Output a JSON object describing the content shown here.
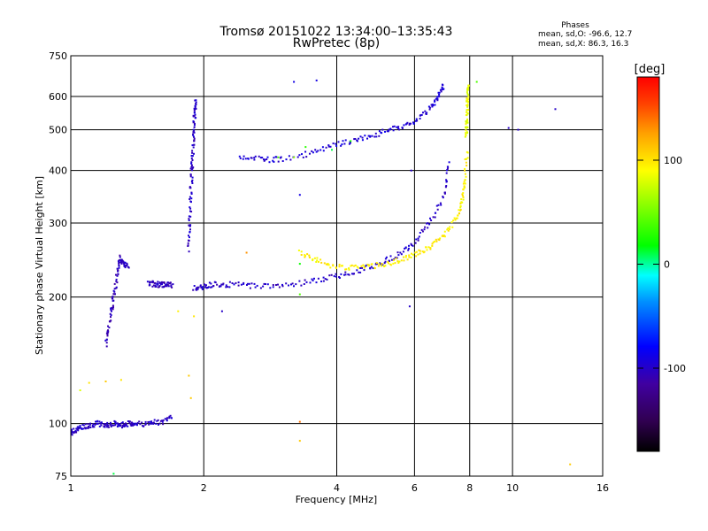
{
  "chart_data": {
    "type": "scatter",
    "title": "Tromsø 20151022 13:34:00–13:35:43",
    "subtitle": "RwPretec (8p)",
    "xlabel": "Frequency [MHz]",
    "ylabel": "Stationary phase Virtual Height [km]",
    "x_scale": "log",
    "y_scale": "log",
    "xlim": [
      1,
      16
    ],
    "ylim": [
      75,
      750
    ],
    "x_ticks": [
      1,
      2,
      4,
      6,
      8,
      10,
      16
    ],
    "x_tick_labels": [
      "1",
      "2",
      "4",
      "6",
      "8",
      "10",
      "16"
    ],
    "y_ticks": [
      75,
      100,
      200,
      300,
      400,
      500,
      600,
      750
    ],
    "y_tick_labels": [
      "75",
      "100",
      "200",
      "300",
      "400",
      "500",
      "600",
      "750"
    ],
    "grid": true,
    "phase_info": {
      "title": "Phases",
      "line_o": "mean, sd,O: -96.6, 12.7",
      "line_x": "mean, sd,X: 86.3, 16.3"
    },
    "colorbar": {
      "label": "[deg]",
      "range": [
        -180,
        180
      ],
      "tick_values": [
        100,
        0,
        -100
      ],
      "tick_labels": [
        "100",
        "0",
        "-100"
      ]
    },
    "traces": [
      {
        "id": "low-E-layer",
        "f": [
          1.0,
          1.02,
          1.05,
          1.1,
          1.15,
          1.2,
          1.25,
          1.3,
          1.35,
          1.4,
          1.5,
          1.6,
          1.7
        ],
        "h": [
          95,
          96,
          98,
          99,
          100,
          99,
          100,
          99,
          100,
          100,
          100,
          101,
          104
        ],
        "phase": -100
      },
      {
        "id": "low-ramp",
        "f": [
          1.2,
          1.22,
          1.24,
          1.26,
          1.28,
          1.3
        ],
        "h": [
          155,
          170,
          190,
          210,
          235,
          250
        ],
        "phase": -105
      },
      {
        "id": "low-cluster",
        "f": [
          1.3,
          1.32,
          1.35
        ],
        "h": [
          245,
          240,
          235
        ],
        "phase": -100
      },
      {
        "id": "f1-trace",
        "f": [
          1.5,
          1.55,
          1.6,
          1.65,
          1.7
        ],
        "h": [
          215,
          215,
          214,
          214,
          214
        ],
        "phase": -105
      },
      {
        "id": "spread-cusp",
        "f": [
          1.85,
          1.86,
          1.87,
          1.88,
          1.89,
          1.9,
          1.91,
          1.92
        ],
        "h": [
          260,
          300,
          350,
          400,
          450,
          500,
          550,
          590
        ],
        "phase": -100
      },
      {
        "id": "o-trace-lower",
        "f": [
          1.9,
          2.0,
          2.1,
          2.3,
          2.6,
          3.0,
          3.5,
          4.0,
          4.5,
          5.0,
          5.5,
          6.0,
          6.5,
          7.0,
          7.2
        ],
        "h": [
          210,
          211,
          215,
          214,
          213,
          213,
          218,
          224,
          232,
          240,
          252,
          270,
          300,
          350,
          420
        ],
        "phase": -100
      },
      {
        "id": "o-trace-upper",
        "f": [
          2.4,
          2.7,
          3.0,
          3.5,
          4.0,
          4.5,
          5.0,
          5.5,
          6.0,
          6.5,
          6.8,
          7.0
        ],
        "h": [
          430,
          425,
          425,
          440,
          460,
          475,
          490,
          505,
          520,
          560,
          600,
          640
        ],
        "phase": -95
      },
      {
        "id": "x-trace",
        "f": [
          3.3,
          3.6,
          4.0,
          4.5,
          5.0,
          5.5,
          6.0,
          6.5,
          7.0,
          7.5,
          7.7,
          7.8,
          7.9
        ],
        "h": [
          255,
          245,
          236,
          235,
          238,
          244,
          252,
          262,
          280,
          310,
          340,
          380,
          450
        ],
        "phase": 95
      },
      {
        "id": "x-cusp",
        "f": [
          7.85,
          7.88,
          7.9,
          7.92,
          7.95
        ],
        "h": [
          480,
          520,
          560,
          600,
          640
        ],
        "phase": 85
      }
    ],
    "scattered_points": [
      {
        "f": 1.1,
        "h": 125,
        "phase": 100
      },
      {
        "f": 1.2,
        "h": 126,
        "phase": 110
      },
      {
        "f": 1.3,
        "h": 127,
        "phase": 100
      },
      {
        "f": 1.05,
        "h": 120,
        "phase": 80
      },
      {
        "f": 1.75,
        "h": 185,
        "phase": 95
      },
      {
        "f": 1.9,
        "h": 180,
        "phase": 100
      },
      {
        "f": 1.85,
        "h": 130,
        "phase": 110
      },
      {
        "f": 1.87,
        "h": 115,
        "phase": 110
      },
      {
        "f": 2.5,
        "h": 255,
        "phase": 130
      },
      {
        "f": 3.3,
        "h": 101,
        "phase": 140
      },
      {
        "f": 3.3,
        "h": 91,
        "phase": 110
      },
      {
        "f": 3.3,
        "h": 350,
        "phase": -90
      },
      {
        "f": 3.2,
        "h": 650,
        "phase": -90
      },
      {
        "f": 3.6,
        "h": 655,
        "phase": -90
      },
      {
        "f": 5.9,
        "h": 400,
        "phase": -100
      },
      {
        "f": 5.85,
        "h": 190,
        "phase": -100
      },
      {
        "f": 10.3,
        "h": 500,
        "phase": -100
      },
      {
        "f": 9.8,
        "h": 505,
        "phase": -100
      },
      {
        "f": 12.5,
        "h": 560,
        "phase": -100
      },
      {
        "f": 13.5,
        "h": 80,
        "phase": 110
      },
      {
        "f": 1.25,
        "h": 76,
        "phase": 10
      },
      {
        "f": 8.3,
        "h": 650,
        "phase": 40
      },
      {
        "f": 3.3,
        "h": 203,
        "phase": 40
      },
      {
        "f": 2.2,
        "h": 185,
        "phase": -100
      },
      {
        "f": 3.2,
        "h": 430,
        "phase": 60
      },
      {
        "f": 3.4,
        "h": 455,
        "phase": 30
      },
      {
        "f": 3.9,
        "h": 448,
        "phase": 10
      },
      {
        "f": 4.3,
        "h": 470,
        "phase": 20
      },
      {
        "f": 3.3,
        "h": 240,
        "phase": 20
      },
      {
        "f": 2.95,
        "h": 430,
        "phase": 40
      }
    ]
  }
}
